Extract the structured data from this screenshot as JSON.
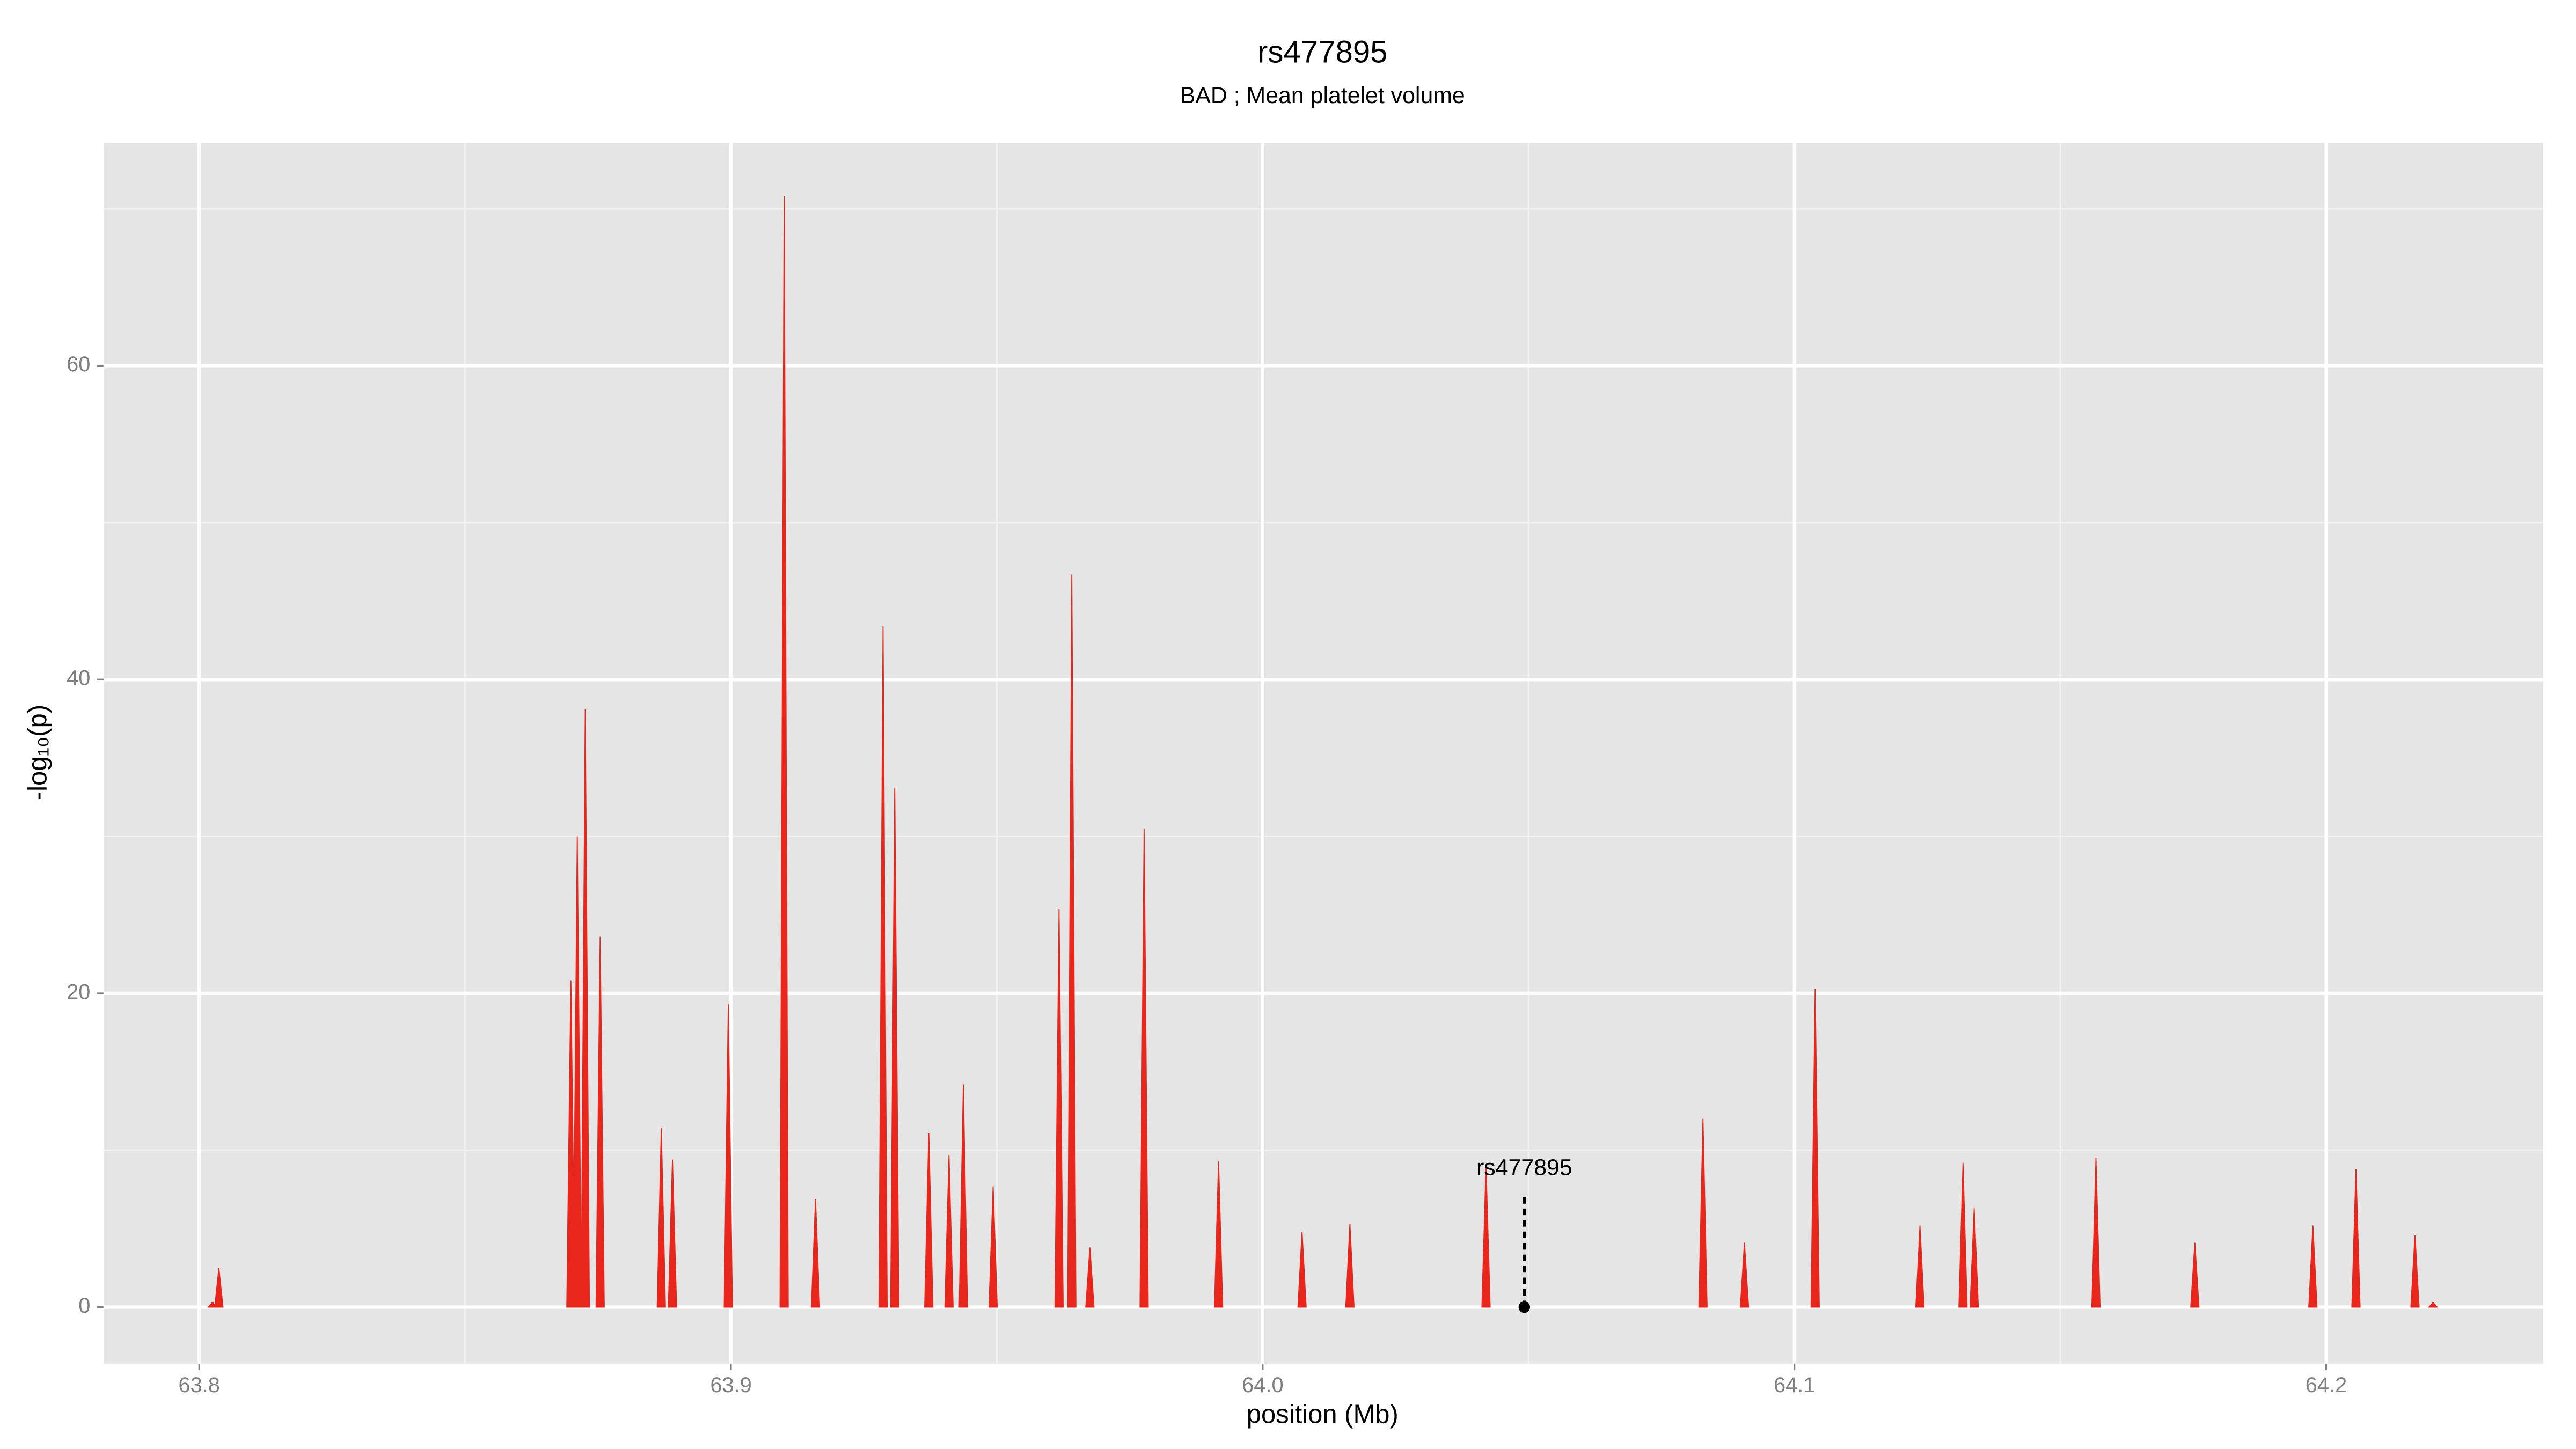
{
  "chart_data": {
    "type": "spike",
    "title": "rs477895",
    "subtitle": "BAD ; Mean platelet volume",
    "x_label": "position (Mb)",
    "y_label": "-log₁₀(p)",
    "color": "#e8261c",
    "x": [
      63.8025,
      63.8037,
      63.8699,
      63.8711,
      63.8726,
      63.8754,
      63.8869,
      63.889,
      63.8995,
      63.91,
      63.9159,
      63.9286,
      63.9308,
      63.9372,
      63.941,
      63.9437,
      63.9493,
      63.9617,
      63.9641,
      63.9675,
      63.9777,
      63.9917,
      64.0074,
      64.0164,
      64.042,
      64.0828,
      64.0906,
      64.1039,
      64.1236,
      64.1317,
      64.1338,
      64.1567,
      64.1753,
      64.1975,
      64.2056,
      64.2167,
      64.2201
    ],
    "values": [
      0.3,
      2.5,
      20.8,
      30,
      38.1,
      23.6,
      11.4,
      9.4,
      19.3,
      70.8,
      6.9,
      43.4,
      33.1,
      11.1,
      9.7,
      14.2,
      7.7,
      25.4,
      46.7,
      3.8,
      30.5,
      9.3,
      4.8,
      5.3,
      9.0,
      12.0,
      4.1,
      20.3,
      5.2,
      9.2,
      6.3,
      9.5,
      4.1,
      5.2,
      8.8,
      4.6,
      0.3
    ],
    "annotations": [
      {
        "label": "rs477895",
        "x": 64.0492,
        "y": 0
      }
    ],
    "xlim": [
      63.782,
      64.2408
    ],
    "ylim": [
      -3.6,
      74.2
    ],
    "xticks": [
      63.8,
      63.9,
      {
        "value": 64,
        "label": "64.0"
      },
      64.1,
      64.2
    ],
    "yticks": [
      0,
      20,
      40,
      60
    ],
    "x_minor_grid": [
      63.85,
      63.95,
      64.05,
      64.15
    ],
    "y_minor_grid": [
      10,
      30,
      50,
      70
    ],
    "grid": true
  }
}
